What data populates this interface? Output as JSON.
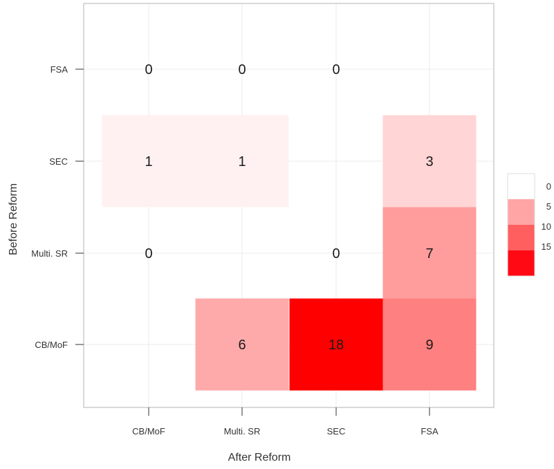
{
  "chart_data": {
    "type": "heatmap",
    "title": "",
    "xlabel": "After Reform",
    "ylabel": "Before Reform",
    "x_categories": [
      "CB/MoF",
      "Multi. SR",
      "SEC",
      "FSA"
    ],
    "y_categories": [
      "FSA",
      "SEC",
      "Multi. SR",
      "CB/MoF"
    ],
    "cells": [
      {
        "x": "CB/MoF",
        "y": "FSA",
        "value": 0,
        "label": "0"
      },
      {
        "x": "Multi. SR",
        "y": "FSA",
        "value": 0,
        "label": "0"
      },
      {
        "x": "SEC",
        "y": "FSA",
        "value": 0,
        "label": "0"
      },
      {
        "x": "CB/MoF",
        "y": "SEC",
        "value": 1,
        "label": "1"
      },
      {
        "x": "Multi. SR",
        "y": "SEC",
        "value": 1,
        "label": "1"
      },
      {
        "x": "FSA",
        "y": "SEC",
        "value": 3,
        "label": "3"
      },
      {
        "x": "CB/MoF",
        "y": "Multi. SR",
        "value": 0,
        "label": "0"
      },
      {
        "x": "SEC",
        "y": "Multi. SR",
        "value": 0,
        "label": "0"
      },
      {
        "x": "FSA",
        "y": "Multi. SR",
        "value": 7,
        "label": "7"
      },
      {
        "x": "Multi. SR",
        "y": "CB/MoF",
        "value": 6,
        "label": "6"
      },
      {
        "x": "SEC",
        "y": "CB/MoF",
        "value": 18,
        "label": "18"
      },
      {
        "x": "FSA",
        "y": "CB/MoF",
        "value": 9,
        "label": "9"
      }
    ],
    "color_scale": {
      "low": "#ffffff",
      "high": "#ff0000",
      "max_value": 18,
      "breaks": [
        0,
        5,
        10,
        15
      ],
      "break_labels": [
        "0",
        "5",
        "10",
        "15"
      ],
      "legend_colors": [
        "#ffffff",
        "#ffa5a5",
        "#ff5f5f",
        "#ff0a14"
      ]
    },
    "grid": true,
    "legend_position": "right"
  }
}
